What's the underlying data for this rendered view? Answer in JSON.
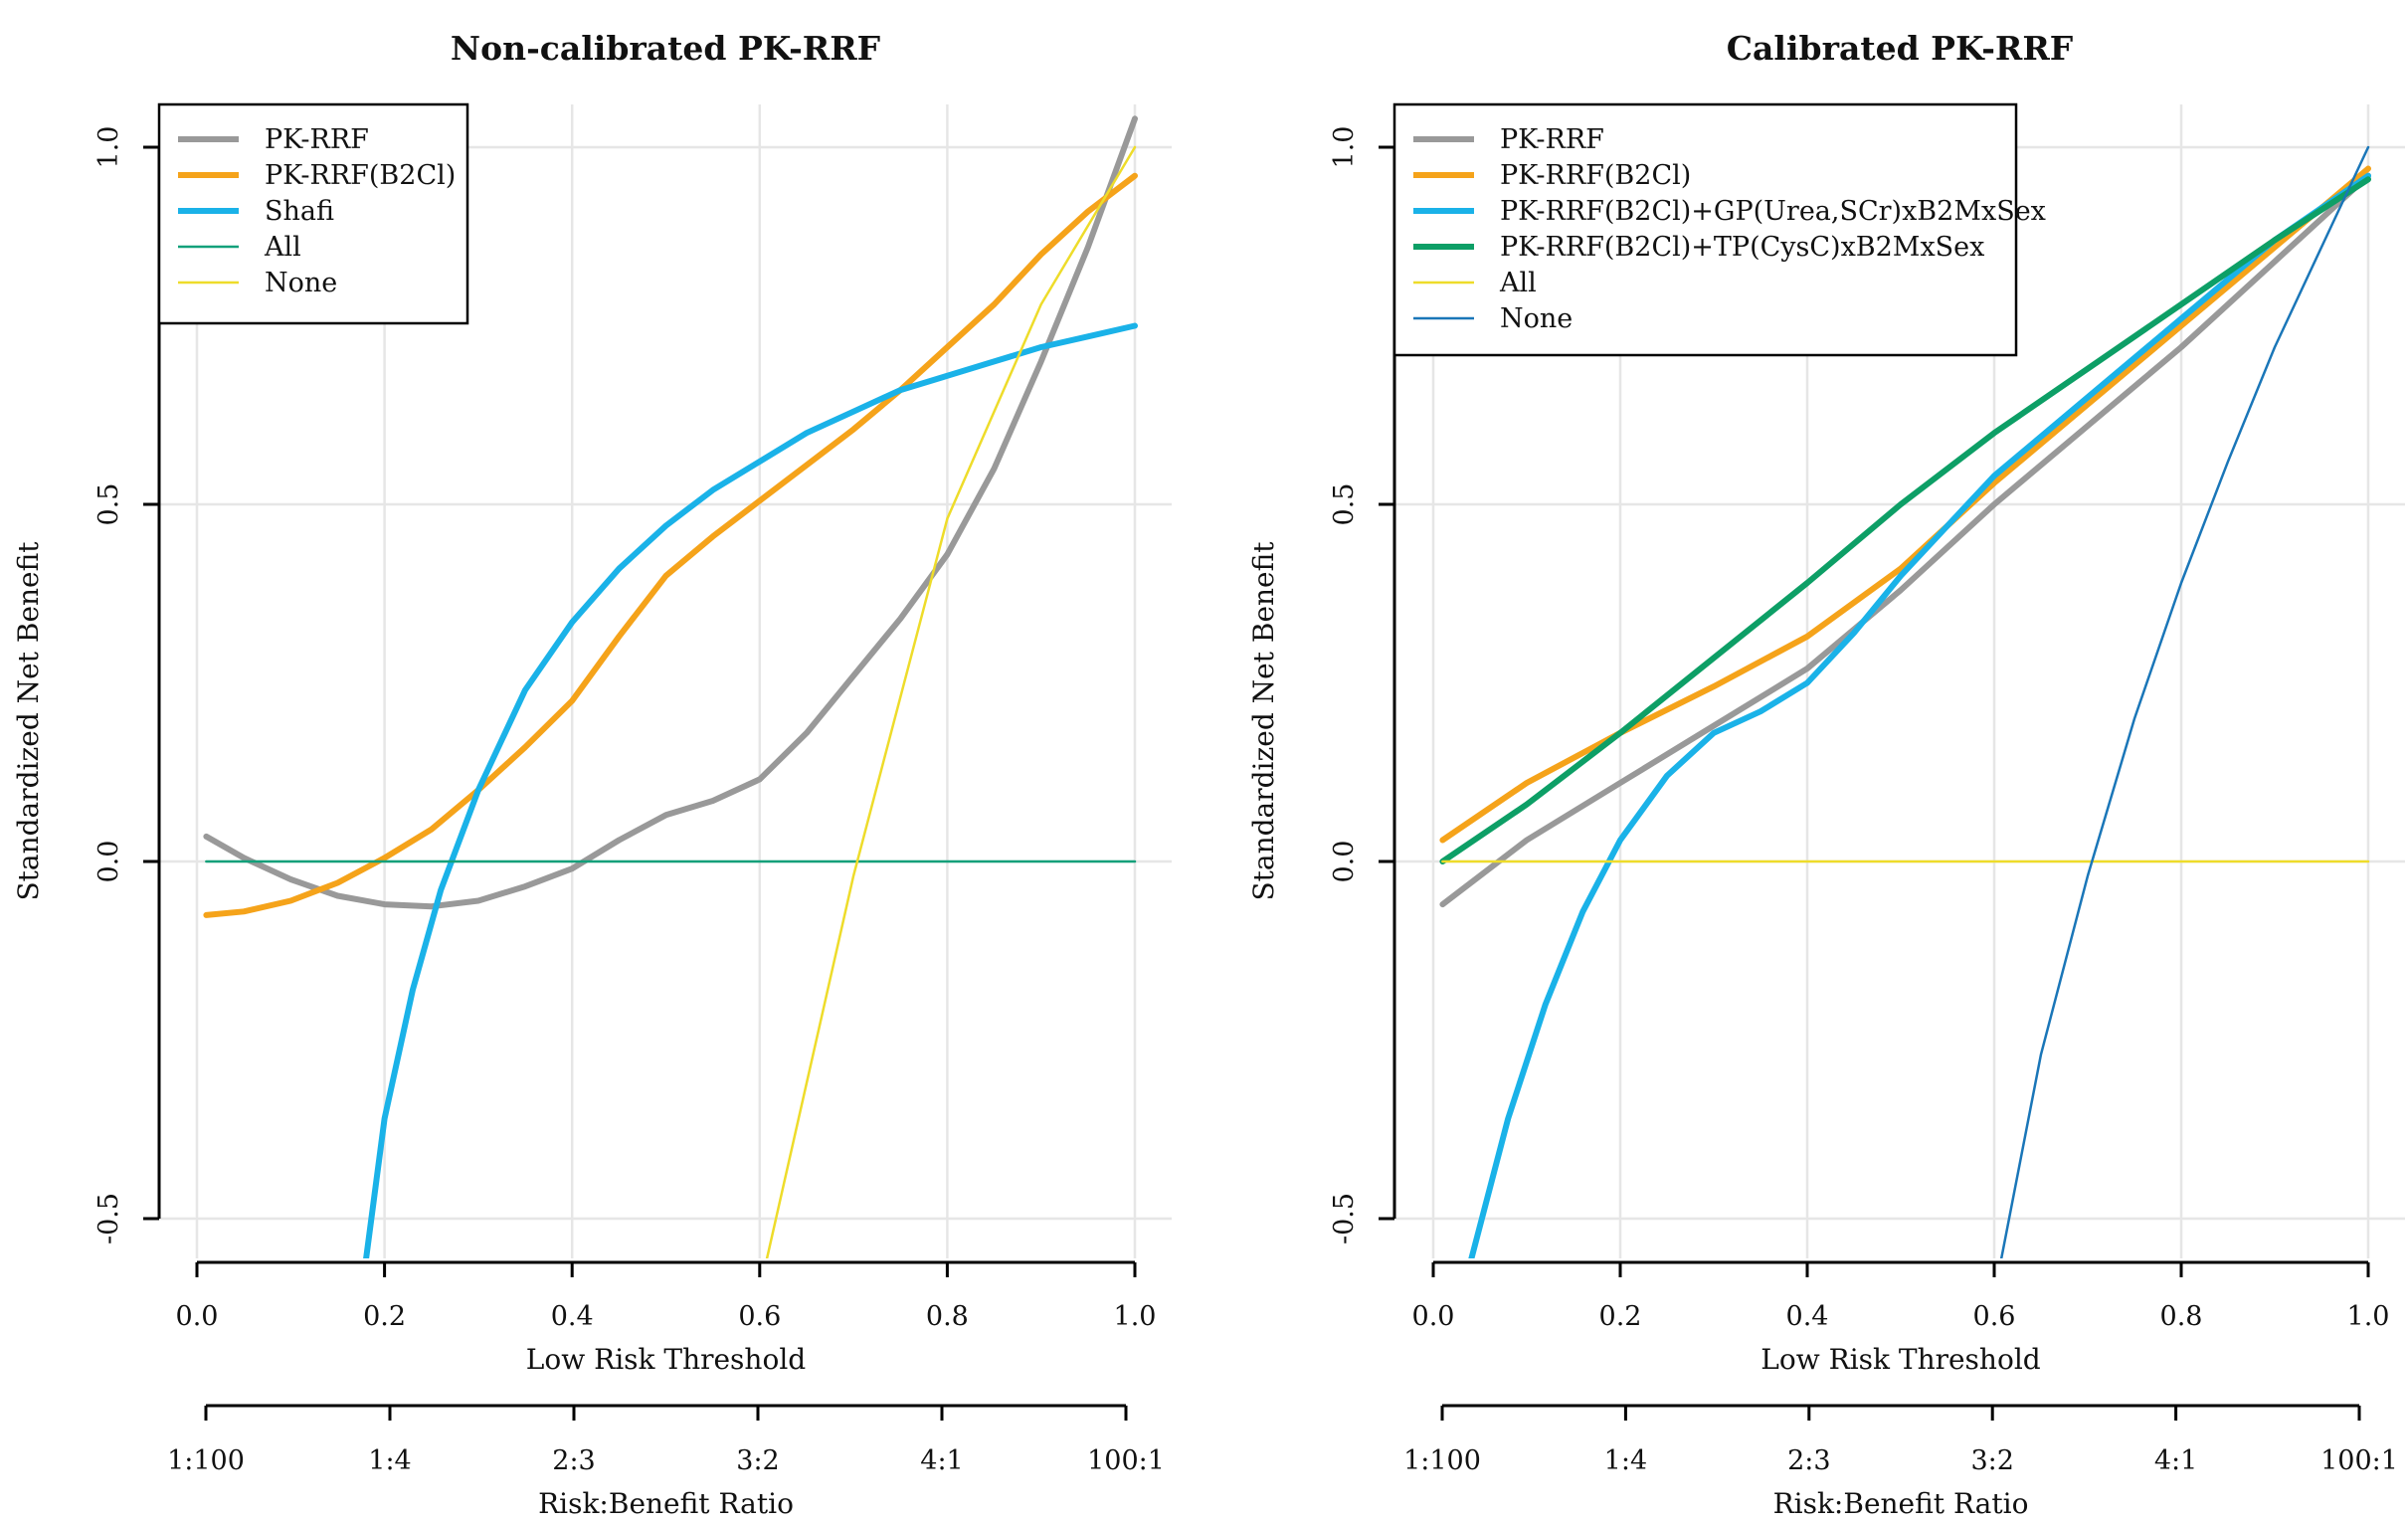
{
  "chart_data": [
    {
      "type": "line",
      "title": "Non-calibrated PK-RRF",
      "xlabel": "Low Risk Threshold",
      "ylabel": "Standardized Net Benefit",
      "xlim": [
        0,
        1
      ],
      "ylim": [
        -0.55,
        1.05
      ],
      "x_ticks": [
        "0.0",
        "0.2",
        "0.4",
        "0.6",
        "0.8",
        "1.0"
      ],
      "y_ticks": [
        "-0.5",
        "0.0",
        "0.5",
        "1.0"
      ],
      "secondary_axis": {
        "label": "Risk:Benefit Ratio",
        "ticks": [
          "1:100",
          "1:4",
          "2:3",
          "3:2",
          "4:1",
          "100:1"
        ]
      },
      "legend_position": "top-left",
      "series": [
        {
          "name": "PK-RRF",
          "color": "#999999",
          "width": "thick",
          "x": [
            0.01,
            0.05,
            0.1,
            0.15,
            0.2,
            0.25,
            0.3,
            0.35,
            0.4,
            0.45,
            0.5,
            0.55,
            0.6,
            0.65,
            0.7,
            0.75,
            0.8,
            0.85,
            0.9,
            0.95,
            1.0
          ],
          "y": [
            0.035,
            0.005,
            -0.025,
            -0.048,
            -0.06,
            -0.063,
            -0.055,
            -0.035,
            -0.01,
            0.03,
            0.065,
            0.085,
            0.115,
            0.18,
            0.26,
            0.34,
            0.43,
            0.55,
            0.7,
            0.86,
            1.04
          ]
        },
        {
          "name": "PK-RRF(B2Cl)",
          "color": "#F5A31A",
          "width": "thick",
          "x": [
            0.01,
            0.05,
            0.1,
            0.15,
            0.2,
            0.25,
            0.3,
            0.35,
            0.4,
            0.45,
            0.5,
            0.55,
            0.6,
            0.65,
            0.7,
            0.75,
            0.8,
            0.85,
            0.9,
            0.95,
            1.0
          ],
          "y": [
            -0.075,
            -0.07,
            -0.055,
            -0.03,
            0.005,
            0.045,
            0.1,
            0.16,
            0.225,
            0.315,
            0.4,
            0.455,
            0.505,
            0.555,
            0.605,
            0.66,
            0.72,
            0.78,
            0.85,
            0.91,
            0.96
          ]
        },
        {
          "name": "Shafi",
          "color": "#1AB2E8",
          "width": "thick",
          "x": [
            0.18,
            0.2,
            0.23,
            0.26,
            0.3,
            0.35,
            0.4,
            0.45,
            0.5,
            0.55,
            0.6,
            0.65,
            0.7,
            0.75,
            0.8,
            0.85,
            0.9,
            0.95,
            1.0
          ],
          "y": [
            -0.56,
            -0.36,
            -0.18,
            -0.04,
            0.1,
            0.24,
            0.335,
            0.41,
            0.47,
            0.52,
            0.56,
            0.6,
            0.63,
            0.66,
            0.68,
            0.7,
            0.72,
            0.735,
            0.75
          ]
        },
        {
          "name": "All",
          "color": "#12A07A",
          "width": "thin",
          "x": [
            0.01,
            1.0
          ],
          "y": [
            0.0,
            0.0
          ]
        },
        {
          "name": "None",
          "color": "#EEDC2A",
          "width": "thin",
          "x": [
            0.607,
            0.7,
            0.8,
            0.9,
            1.0
          ],
          "y": [
            -0.56,
            -0.02,
            0.48,
            0.78,
            1.0
          ]
        }
      ]
    },
    {
      "type": "line",
      "title": "Calibrated PK-RRF",
      "xlabel": "Low Risk Threshold",
      "ylabel": "Standardized Net Benefit",
      "xlim": [
        0,
        1
      ],
      "ylim": [
        -0.55,
        1.05
      ],
      "x_ticks": [
        "0.0",
        "0.2",
        "0.4",
        "0.6",
        "0.8",
        "1.0"
      ],
      "y_ticks": [
        "-0.5",
        "0.0",
        "0.5",
        "1.0"
      ],
      "secondary_axis": {
        "label": "Risk:Benefit Ratio",
        "ticks": [
          "1:100",
          "1:4",
          "2:3",
          "3:2",
          "4:1",
          "100:1"
        ]
      },
      "legend_position": "top-left",
      "series": [
        {
          "name": "PK-RRF",
          "color": "#999999",
          "width": "thick",
          "x": [
            0.01,
            0.1,
            0.2,
            0.3,
            0.4,
            0.5,
            0.6,
            0.7,
            0.8,
            0.9,
            1.0
          ],
          "y": [
            -0.06,
            0.03,
            0.11,
            0.19,
            0.27,
            0.38,
            0.5,
            0.61,
            0.72,
            0.84,
            0.96
          ]
        },
        {
          "name": "PK-RRF(B2Cl)",
          "color": "#F5A31A",
          "width": "thick",
          "x": [
            0.01,
            0.1,
            0.2,
            0.3,
            0.4,
            0.5,
            0.6,
            0.7,
            0.8,
            0.9,
            1.0
          ],
          "y": [
            0.03,
            0.11,
            0.18,
            0.245,
            0.315,
            0.41,
            0.53,
            0.64,
            0.75,
            0.86,
            0.97
          ]
        },
        {
          "name": "PK-RRF(B2Cl)+GP(Urea,SCr)xB2MxSex",
          "color": "#1AB2E8",
          "width": "thick",
          "x": [
            0.04,
            0.08,
            0.12,
            0.16,
            0.2,
            0.25,
            0.3,
            0.35,
            0.4,
            0.45,
            0.5,
            0.55,
            0.6,
            0.7,
            0.8,
            0.9,
            1.0
          ],
          "y": [
            -0.56,
            -0.36,
            -0.2,
            -0.07,
            0.03,
            0.12,
            0.18,
            0.21,
            0.25,
            0.32,
            0.4,
            0.47,
            0.54,
            0.65,
            0.76,
            0.87,
            0.96
          ]
        },
        {
          "name": "PK-RRF(B2Cl)+TP(CysC)xB2MxSex",
          "color": "#0D9F66",
          "width": "thick",
          "x": [
            0.01,
            0.1,
            0.2,
            0.3,
            0.4,
            0.5,
            0.6,
            0.7,
            0.8,
            0.9,
            1.0
          ],
          "y": [
            0.0,
            0.08,
            0.18,
            0.285,
            0.39,
            0.5,
            0.6,
            0.69,
            0.78,
            0.87,
            0.955
          ]
        },
        {
          "name": "All",
          "color": "#EEDC2A",
          "width": "thin",
          "x": [
            0.01,
            1.0
          ],
          "y": [
            0.0,
            0.0
          ]
        },
        {
          "name": "None",
          "color": "#1A76B8",
          "width": "thin",
          "x": [
            0.607,
            0.65,
            0.7,
            0.75,
            0.8,
            0.85,
            0.9,
            0.95,
            1.0
          ],
          "y": [
            -0.56,
            -0.27,
            -0.02,
            0.2,
            0.39,
            0.56,
            0.72,
            0.86,
            1.0
          ]
        }
      ]
    }
  ]
}
